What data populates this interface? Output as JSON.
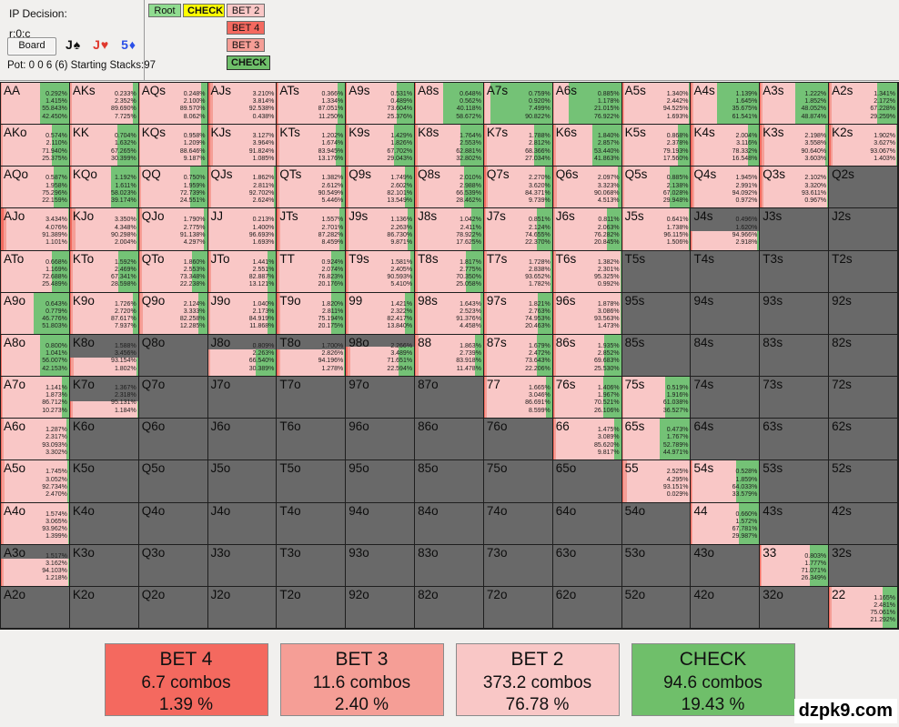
{
  "header": {
    "title": "IP Decision:",
    "node": "r:0:c",
    "board_button": "Board",
    "cards": [
      {
        "text": "J♠",
        "color": "#111111"
      },
      {
        "text": "J♥",
        "color": "#e0392e"
      },
      {
        "text": "5♦",
        "color": "#2b50e8"
      }
    ],
    "pot_line": "Pot: 0 0 6 (6) Starting Stacks:97",
    "tree": {
      "root_label": "Root",
      "root_color": "#90dc90",
      "line_label": "CHECK",
      "line_color": "#ffff00",
      "bet2_label": "BET 2",
      "bet2_color": "#f9c7c6",
      "bet4_label": "BET 4",
      "bet4_color": "#f4695f",
      "bet3_label": "BET 3",
      "bet3_color": "#f59e96",
      "check_label": "CHECK",
      "check_color": "#6fbf6a"
    }
  },
  "actions": {
    "order": [
      "BET 4",
      "BET 3",
      "BET 2",
      "CHECK"
    ],
    "colors": {
      "bet4": "#f26c60",
      "bet3": "#f59e96",
      "bet2": "#f9c7c6",
      "check": "#74c276"
    },
    "out_of_range_color": "#696969"
  },
  "grid": {
    "rows": [
      [
        {
          "h": "AA",
          "v": [
            "0.292%",
            "1.415%",
            "55.843%",
            "42.450%"
          ]
        },
        {
          "h": "AKs",
          "v": [
            "0.233%",
            "2.352%",
            "89.690%",
            "7.725%"
          ]
        },
        {
          "h": "AQs",
          "v": [
            "0.248%",
            "2.100%",
            "89.570%",
            "8.062%"
          ]
        },
        {
          "h": "AJs",
          "v": [
            "3.210%",
            "3.814%",
            "92.538%",
            "0.438%"
          ]
        },
        {
          "h": "ATs",
          "v": [
            "0.366%",
            "1.334%",
            "87.051%",
            "11.250%"
          ]
        },
        {
          "h": "A9s",
          "v": [
            "0.531%",
            "0.489%",
            "73.604%",
            "25.376%"
          ]
        },
        {
          "h": "A8s",
          "v": [
            "0.648%",
            "0.562%",
            "40.118%",
            "58.672%"
          ]
        },
        {
          "h": "A7s",
          "v": [
            "0.759%",
            "0.920%",
            "7.499%",
            "90.822%"
          ]
        },
        {
          "h": "A6s",
          "v": [
            "0.885%",
            "1.178%",
            "21.015%",
            "76.922%"
          ]
        },
        {
          "h": "A5s",
          "v": [
            "1.340%",
            "2.442%",
            "94.525%",
            "1.693%"
          ]
        },
        {
          "h": "A4s",
          "v": [
            "1.139%",
            "1.645%",
            "35.675%",
            "61.541%"
          ]
        },
        {
          "h": "A3s",
          "v": [
            "1.222%",
            "1.852%",
            "48.052%",
            "48.874%"
          ]
        },
        {
          "h": "A2s",
          "v": [
            "1.341%",
            "2.172%",
            "67.228%",
            "29.259%"
          ]
        }
      ],
      [
        {
          "h": "AKo",
          "v": [
            "0.574%",
            "2.110%",
            "71.940%",
            "25.375%"
          ]
        },
        {
          "h": "KK",
          "v": [
            "0.704%",
            "1.632%",
            "67.265%",
            "30.399%"
          ]
        },
        {
          "h": "KQs",
          "v": [
            "0.958%",
            "1.209%",
            "88.646%",
            "9.187%"
          ]
        },
        {
          "h": "KJs",
          "v": [
            "3.127%",
            "3.964%",
            "91.824%",
            "1.085%"
          ]
        },
        {
          "h": "KTs",
          "v": [
            "1.202%",
            "1.674%",
            "83.945%",
            "13.176%"
          ]
        },
        {
          "h": "K9s",
          "v": [
            "1.429%",
            "1.826%",
            "67.702%",
            "29.043%"
          ]
        },
        {
          "h": "K8s",
          "v": [
            "1.764%",
            "2.553%",
            "62.881%",
            "32.802%"
          ]
        },
        {
          "h": "K7s",
          "v": [
            "1.788%",
            "2.812%",
            "68.366%",
            "27.034%"
          ]
        },
        {
          "h": "K6s",
          "v": [
            "1.840%",
            "2.857%",
            "53.440%",
            "41.863%"
          ]
        },
        {
          "h": "K5s",
          "v": [
            "0.868%",
            "2.378%",
            "79.193%",
            "17.560%"
          ]
        },
        {
          "h": "K4s",
          "v": [
            "2.004%",
            "3.116%",
            "78.332%",
            "16.548%"
          ]
        },
        {
          "h": "K3s",
          "v": [
            "2.198%",
            "3.558%",
            "90.640%",
            "3.603%"
          ]
        },
        {
          "h": "K2s",
          "v": [
            "1.902%",
            "3.627%",
            "93.067%",
            "1.403%"
          ]
        }
      ],
      [
        {
          "h": "AQo",
          "v": [
            "0.587%",
            "1.958%",
            "75.296%",
            "22.159%"
          ]
        },
        {
          "h": "KQo",
          "v": [
            "1.192%",
            "1.611%",
            "58.023%",
            "39.174%"
          ]
        },
        {
          "h": "QQ",
          "v": [
            "0.750%",
            "1.959%",
            "72.739%",
            "24.551%"
          ]
        },
        {
          "h": "QJs",
          "v": [
            "1.862%",
            "2.811%",
            "92.702%",
            "2.624%"
          ]
        },
        {
          "h": "QTs",
          "v": [
            "1.382%",
            "2.612%",
            "90.549%",
            "5.446%"
          ]
        },
        {
          "h": "Q9s",
          "v": [
            "1.749%",
            "2.602%",
            "82.101%",
            "13.549%"
          ]
        },
        {
          "h": "Q8s",
          "v": [
            "2.010%",
            "2.988%",
            "66.539%",
            "28.462%"
          ]
        },
        {
          "h": "Q7s",
          "v": [
            "2.270%",
            "3.620%",
            "84.371%",
            "9.739%"
          ]
        },
        {
          "h": "Q6s",
          "v": [
            "2.097%",
            "3.323%",
            "90.068%",
            "4.513%"
          ]
        },
        {
          "h": "Q5s",
          "v": [
            "0.885%",
            "2.138%",
            "67.028%",
            "29.948%"
          ]
        },
        {
          "h": "Q4s",
          "v": [
            "1.945%",
            "2.991%",
            "94.092%",
            "0.972%"
          ]
        },
        {
          "h": "Q3s",
          "v": [
            "2.102%",
            "3.320%",
            "93.611%",
            "0.967%"
          ]
        },
        {
          "h": "Q2s"
        }
      ],
      [
        {
          "h": "AJo",
          "v": [
            "3.434%",
            "4.076%",
            "91.389%",
            "1.101%"
          ]
        },
        {
          "h": "KJo",
          "v": [
            "3.350%",
            "4.348%",
            "90.298%",
            "2.004%"
          ]
        },
        {
          "h": "QJo",
          "v": [
            "1.790%",
            "2.775%",
            "91.138%",
            "4.297%"
          ]
        },
        {
          "h": "JJ",
          "v": [
            "0.213%",
            "1.400%",
            "96.693%",
            "1.693%"
          ]
        },
        {
          "h": "JTs",
          "v": [
            "1.557%",
            "2.701%",
            "87.282%",
            "8.459%"
          ]
        },
        {
          "h": "J9s",
          "v": [
            "1.136%",
            "2.263%",
            "86.730%",
            "9.871%"
          ]
        },
        {
          "h": "J8s",
          "v": [
            "1.042%",
            "2.411%",
            "78.922%",
            "17.625%"
          ]
        },
        {
          "h": "J7s",
          "v": [
            "0.851%",
            "2.124%",
            "74.655%",
            "22.370%"
          ]
        },
        {
          "h": "J6s",
          "v": [
            "0.811%",
            "2.063%",
            "76.282%",
            "20.845%"
          ]
        },
        {
          "h": "J5s",
          "v": [
            "0.641%",
            "1.738%",
            "96.115%",
            "1.506%"
          ]
        },
        {
          "h": "J4s",
          "v": [
            "0.496%",
            "1.620%",
            "94.966%",
            "2.918%"
          ],
          "g": 0.55
        },
        {
          "h": "J3s"
        },
        {
          "h": "J2s"
        }
      ],
      [
        {
          "h": "ATo",
          "v": [
            "0.668%",
            "1.169%",
            "72.688%",
            "25.489%"
          ]
        },
        {
          "h": "KTo",
          "v": [
            "1.592%",
            "2.469%",
            "67.341%",
            "28.598%"
          ]
        },
        {
          "h": "QTo",
          "v": [
            "1.860%",
            "2.553%",
            "73.348%",
            "22.238%"
          ]
        },
        {
          "h": "JTo",
          "v": [
            "1.441%",
            "2.551%",
            "82.887%",
            "13.121%"
          ]
        },
        {
          "h": "TT",
          "v": [
            "0.924%",
            "2.074%",
            "76.823%",
            "20.176%"
          ]
        },
        {
          "h": "T9s",
          "v": [
            "1.581%",
            "2.405%",
            "90.593%",
            "5.410%"
          ]
        },
        {
          "h": "T8s",
          "v": [
            "1.817%",
            "2.775%",
            "70.350%",
            "25.058%"
          ]
        },
        {
          "h": "T7s",
          "v": [
            "1.728%",
            "2.838%",
            "93.652%",
            "1.782%"
          ]
        },
        {
          "h": "T6s",
          "v": [
            "1.382%",
            "2.301%",
            "95.325%",
            "0.992%"
          ]
        },
        {
          "h": "T5s"
        },
        {
          "h": "T4s"
        },
        {
          "h": "T3s"
        },
        {
          "h": "T2s"
        }
      ],
      [
        {
          "h": "A9o",
          "v": [
            "0.643%",
            "0.779%",
            "46.776%",
            "51.803%"
          ]
        },
        {
          "h": "K9o",
          "v": [
            "1.726%",
            "2.720%",
            "87.617%",
            "7.937%"
          ]
        },
        {
          "h": "Q9o",
          "v": [
            "2.124%",
            "3.333%",
            "82.258%",
            "12.285%"
          ]
        },
        {
          "h": "J9o",
          "v": [
            "1.040%",
            "2.173%",
            "84.919%",
            "11.868%"
          ]
        },
        {
          "h": "T9o",
          "v": [
            "1.820%",
            "2.811%",
            "75.194%",
            "20.175%"
          ]
        },
        {
          "h": "99",
          "v": [
            "1.421%",
            "2.322%",
            "82.417%",
            "13.840%"
          ]
        },
        {
          "h": "98s",
          "v": [
            "1.643%",
            "2.523%",
            "91.376%",
            "4.458%"
          ]
        },
        {
          "h": "97s",
          "v": [
            "1.821%",
            "2.763%",
            "74.953%",
            "20.463%"
          ]
        },
        {
          "h": "96s",
          "v": [
            "1.878%",
            "3.086%",
            "93.563%",
            "1.473%"
          ]
        },
        {
          "h": "95s"
        },
        {
          "h": "94s"
        },
        {
          "h": "93s"
        },
        {
          "h": "92s"
        }
      ],
      [
        {
          "h": "A8o",
          "v": [
            "0.800%",
            "1.041%",
            "56.007%",
            "42.153%"
          ]
        },
        {
          "h": "K8o",
          "v": [
            "1.588%",
            "3.456%",
            "93.154%",
            "1.802%"
          ],
          "g": 0.55
        },
        {
          "h": "Q8o"
        },
        {
          "h": "J8o",
          "v": [
            "0.809%",
            "2.263%",
            "66.540%",
            "30.389%"
          ],
          "g": 0.35
        },
        {
          "h": "T8o",
          "v": [
            "1.700%",
            "2.826%",
            "94.196%",
            "1.278%"
          ],
          "g": 0.35
        },
        {
          "h": "98o",
          "v": [
            "2.266%",
            "3.489%",
            "71.651%",
            "22.594%"
          ],
          "g": 0.3
        },
        {
          "h": "88",
          "v": [
            "1.863%",
            "2.739%",
            "83.918%",
            "11.478%"
          ]
        },
        {
          "h": "87s",
          "v": [
            "1.679%",
            "2.472%",
            "73.643%",
            "22.206%"
          ]
        },
        {
          "h": "86s",
          "v": [
            "1.935%",
            "2.852%",
            "69.683%",
            "25.530%"
          ]
        },
        {
          "h": "85s"
        },
        {
          "h": "84s"
        },
        {
          "h": "83s"
        },
        {
          "h": "82s"
        }
      ],
      [
        {
          "h": "A7o",
          "v": [
            "1.141%",
            "1.873%",
            "86.712%",
            "10.273%"
          ]
        },
        {
          "h": "K7o",
          "v": [
            "1.367%",
            "2.318%",
            "95.131%",
            "1.184%"
          ],
          "g": 0.6
        },
        {
          "h": "Q7o"
        },
        {
          "h": "J7o"
        },
        {
          "h": "T7o"
        },
        {
          "h": "97o"
        },
        {
          "h": "87o"
        },
        {
          "h": "77",
          "v": [
            "1.665%",
            "3.046%",
            "86.691%",
            "8.599%"
          ]
        },
        {
          "h": "76s",
          "v": [
            "1.406%",
            "1.967%",
            "70.521%",
            "26.106%"
          ]
        },
        {
          "h": "75s",
          "v": [
            "0.519%",
            "1.916%",
            "61.038%",
            "36.527%"
          ]
        },
        {
          "h": "74s"
        },
        {
          "h": "73s"
        },
        {
          "h": "72s"
        }
      ],
      [
        {
          "h": "A6o",
          "v": [
            "1.287%",
            "2.317%",
            "93.093%",
            "3.302%"
          ]
        },
        {
          "h": "K6o"
        },
        {
          "h": "Q6o"
        },
        {
          "h": "J6o"
        },
        {
          "h": "T6o"
        },
        {
          "h": "96o"
        },
        {
          "h": "86o"
        },
        {
          "h": "76o"
        },
        {
          "h": "66",
          "v": [
            "1.475%",
            "3.089%",
            "85.620%",
            "9.817%"
          ]
        },
        {
          "h": "65s",
          "v": [
            "0.473%",
            "1.767%",
            "52.789%",
            "44.971%"
          ]
        },
        {
          "h": "64s"
        },
        {
          "h": "63s"
        },
        {
          "h": "62s"
        }
      ],
      [
        {
          "h": "A5o",
          "v": [
            "1.745%",
            "3.052%",
            "92.734%",
            "2.470%"
          ]
        },
        {
          "h": "K5o"
        },
        {
          "h": "Q5o"
        },
        {
          "h": "J5o"
        },
        {
          "h": "T5o"
        },
        {
          "h": "95o"
        },
        {
          "h": "85o"
        },
        {
          "h": "75o"
        },
        {
          "h": "65o"
        },
        {
          "h": "55",
          "v": [
            "2.525%",
            "4.295%",
            "93.151%",
            "0.029%"
          ]
        },
        {
          "h": "54s",
          "v": [
            "0.528%",
            "1.859%",
            "64.033%",
            "33.579%"
          ]
        },
        {
          "h": "53s"
        },
        {
          "h": "52s"
        }
      ],
      [
        {
          "h": "A4o",
          "v": [
            "1.574%",
            "3.065%",
            "93.962%",
            "1.399%"
          ]
        },
        {
          "h": "K4o"
        },
        {
          "h": "Q4o"
        },
        {
          "h": "J4o"
        },
        {
          "h": "T4o"
        },
        {
          "h": "94o"
        },
        {
          "h": "84o"
        },
        {
          "h": "74o"
        },
        {
          "h": "64o"
        },
        {
          "h": "54o"
        },
        {
          "h": "44",
          "v": [
            "0.660%",
            "1.572%",
            "67.781%",
            "29.987%"
          ]
        },
        {
          "h": "43s"
        },
        {
          "h": "42s"
        }
      ],
      [
        {
          "h": "A3o",
          "v": [
            "1.517%",
            "3.162%",
            "94.103%",
            "1.218%"
          ],
          "g": 0.35
        },
        {
          "h": "K3o"
        },
        {
          "h": "Q3o"
        },
        {
          "h": "J3o"
        },
        {
          "h": "T3o"
        },
        {
          "h": "93o"
        },
        {
          "h": "83o"
        },
        {
          "h": "73o"
        },
        {
          "h": "63o"
        },
        {
          "h": "53o"
        },
        {
          "h": "43o"
        },
        {
          "h": "33",
          "v": [
            "0.803%",
            "1.777%",
            "71.071%",
            "26.349%"
          ]
        },
        {
          "h": "32s"
        }
      ],
      [
        {
          "h": "A2o"
        },
        {
          "h": "K2o"
        },
        {
          "h": "Q2o"
        },
        {
          "h": "J2o"
        },
        {
          "h": "T2o"
        },
        {
          "h": "92o"
        },
        {
          "h": "82o"
        },
        {
          "h": "72o"
        },
        {
          "h": "62o"
        },
        {
          "h": "52o"
        },
        {
          "h": "42o"
        },
        {
          "h": "32o"
        },
        {
          "h": "22",
          "v": [
            "1.165%",
            "2.481%",
            "75.061%",
            "21.292%"
          ]
        }
      ]
    ]
  },
  "summary": {
    "items": [
      {
        "label": "BET 4",
        "combos": "6.7 combos",
        "pct": "1.39 %",
        "color": "#f4695f"
      },
      {
        "label": "BET 3",
        "combos": "11.6 combos",
        "pct": "2.40 %",
        "color": "#f59e96"
      },
      {
        "label": "BET 2",
        "combos": "373.2 combos",
        "pct": "76.78 %",
        "color": "#f9c7c6"
      },
      {
        "label": "CHECK",
        "combos": "94.6 combos",
        "pct": "19.43 %",
        "color": "#6fbf6a"
      }
    ]
  },
  "watermark": "dzpk9.com"
}
